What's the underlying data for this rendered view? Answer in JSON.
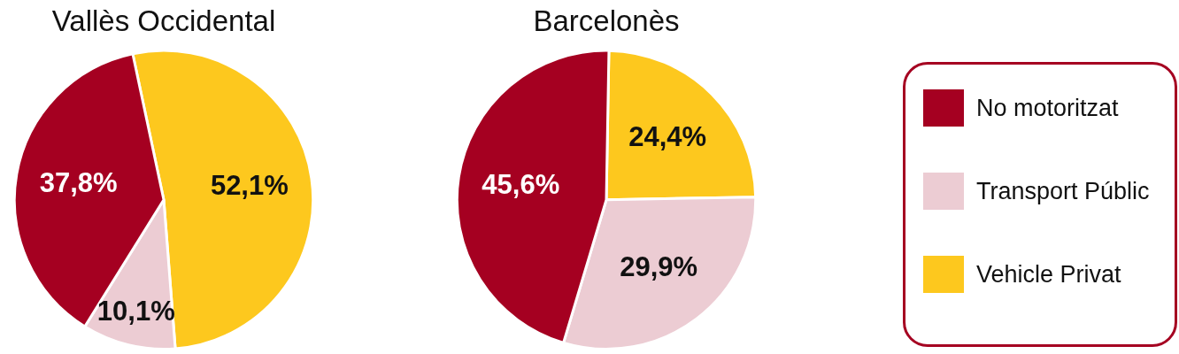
{
  "chart_data": [
    {
      "type": "pie",
      "title": "Vallès Occidental",
      "categories": [
        null,
        null,
        null
      ],
      "values": [
        37.8,
        10.1,
        52.1
      ],
      "value_labels": [
        "37,8%",
        "10,1%",
        "52,1%"
      ],
      "colors": [
        "#a50021",
        "#ecccd3",
        "#fdc81e"
      ],
      "legend": false
    },
    {
      "type": "pie",
      "title": "Barcelonès",
      "categories": [
        "No motoritzat",
        "Transport Públic",
        "Vehicle Privat"
      ],
      "values": [
        45.6,
        29.9,
        24.4
      ],
      "value_labels": [
        "45,6%",
        "29,9%",
        "24,4%"
      ],
      "colors": [
        "#a50021",
        "#ecccd3",
        "#fdc81e"
      ],
      "legend": "right"
    }
  ]
}
